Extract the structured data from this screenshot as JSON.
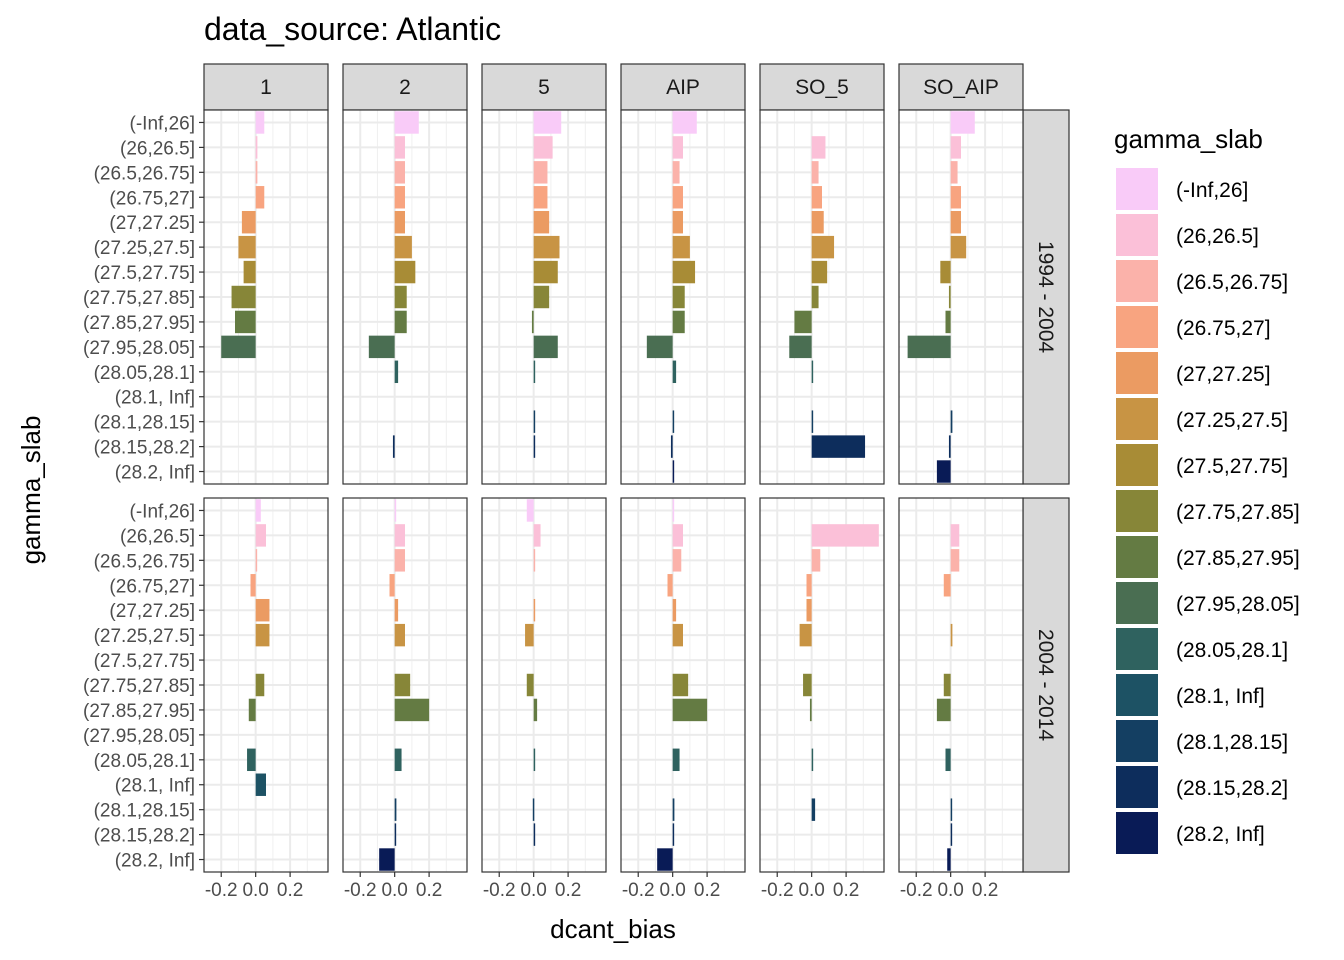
{
  "chart_data": {
    "type": "bar",
    "orientation": "horizontal",
    "title": "data_source: Atlantic",
    "xlabel": "dcant_bias",
    "ylabel": "gamma_slab",
    "xlim": [
      -0.3,
      0.42
    ],
    "x_ticks": [
      -0.2,
      0.0,
      0.2
    ],
    "x_tick_labels": [
      "-0.2",
      "0.0",
      "0.2"
    ],
    "grid": true,
    "legend_title": "gamma_slab",
    "legend_position": "right",
    "categories": [
      "(-Inf,26]",
      "(26,26.5]",
      "(26.5,26.75]",
      "(26.75,27]",
      "(27,27.25]",
      "(27.25,27.5]",
      "(27.5,27.75]",
      "(27.75,27.85]",
      "(27.85,27.95]",
      "(27.95,28.05]",
      "(28.05,28.1]",
      "(28.1, Inf]",
      "(28.1,28.15]",
      "(28.15,28.2]",
      "(28.2, Inf]"
    ],
    "colors": [
      "#F9CBF8",
      "#FBC0D8",
      "#FBB2AA",
      "#F8A480",
      "#EB9B62",
      "#C89444",
      "#A88C36",
      "#878638",
      "#647B43",
      "#4A6E52",
      "#2F625F",
      "#1D5264",
      "#143F62",
      "#0D2D5C",
      "#091B56"
    ],
    "col_facets": [
      "1",
      "2",
      "5",
      "AIP",
      "SO_5",
      "SO_AIP"
    ],
    "row_facets": [
      "1994 - 2004",
      "2004 - 2014"
    ],
    "panels": [
      {
        "row": "1994 - 2004",
        "col": "1",
        "values": [
          0.05,
          0.01,
          0.01,
          0.05,
          -0.08,
          -0.1,
          -0.07,
          -0.14,
          -0.12,
          -0.2,
          null,
          null,
          null,
          null,
          null
        ]
      },
      {
        "row": "1994 - 2004",
        "col": "2",
        "values": [
          0.14,
          0.06,
          0.06,
          0.06,
          0.06,
          0.1,
          0.12,
          0.07,
          0.07,
          -0.15,
          0.02,
          null,
          null,
          -0.01,
          null
        ]
      },
      {
        "row": "1994 - 2004",
        "col": "5",
        "values": [
          0.16,
          0.11,
          0.08,
          0.08,
          0.09,
          0.15,
          0.14,
          0.09,
          -0.01,
          0.14,
          0.005,
          null,
          0.005,
          0.005,
          null
        ]
      },
      {
        "row": "1994 - 2004",
        "col": "AIP",
        "values": [
          0.14,
          0.06,
          0.04,
          0.06,
          0.06,
          0.1,
          0.13,
          0.07,
          0.07,
          -0.15,
          0.02,
          null,
          0.005,
          -0.01,
          0.005
        ]
      },
      {
        "row": "1994 - 2004",
        "col": "SO_5",
        "values": [
          null,
          0.08,
          0.04,
          0.06,
          0.07,
          0.13,
          0.09,
          0.04,
          -0.1,
          -0.13,
          0.005,
          null,
          0.005,
          0.31,
          null
        ]
      },
      {
        "row": "1994 - 2004",
        "col": "SO_AIP",
        "values": [
          0.14,
          0.06,
          0.04,
          0.06,
          0.06,
          0.09,
          -0.06,
          -0.01,
          -0.03,
          -0.25,
          null,
          null,
          0.01,
          -0.01,
          -0.08
        ]
      },
      {
        "row": "2004 - 2014",
        "col": "1",
        "values": [
          0.03,
          0.06,
          0.005,
          -0.03,
          0.08,
          0.08,
          null,
          0.05,
          -0.04,
          null,
          -0.05,
          0.06,
          null,
          null,
          null
        ]
      },
      {
        "row": "2004 - 2014",
        "col": "2",
        "values": [
          0.005,
          0.06,
          0.06,
          -0.03,
          0.02,
          0.06,
          null,
          0.09,
          0.2,
          null,
          0.04,
          null,
          0.01,
          0.005,
          -0.09
        ]
      },
      {
        "row": "2004 - 2014",
        "col": "5",
        "values": [
          -0.04,
          0.04,
          0.005,
          null,
          0.005,
          -0.05,
          null,
          -0.04,
          0.02,
          null,
          0.005,
          null,
          -0.005,
          0.005,
          null
        ]
      },
      {
        "row": "2004 - 2014",
        "col": "AIP",
        "values": [
          0.005,
          0.06,
          0.05,
          -0.03,
          0.02,
          0.06,
          null,
          0.09,
          0.2,
          null,
          0.04,
          null,
          0.01,
          0.005,
          -0.09
        ]
      },
      {
        "row": "2004 - 2014",
        "col": "SO_5",
        "values": [
          null,
          0.39,
          0.05,
          -0.03,
          -0.03,
          -0.07,
          null,
          -0.05,
          -0.01,
          null,
          0.005,
          null,
          0.02,
          null,
          null
        ]
      },
      {
        "row": "2004 - 2014",
        "col": "SO_AIP",
        "values": [
          null,
          0.05,
          0.05,
          -0.04,
          null,
          0.01,
          null,
          -0.04,
          -0.08,
          null,
          -0.03,
          null,
          0.005,
          0.005,
          -0.02
        ]
      }
    ]
  }
}
